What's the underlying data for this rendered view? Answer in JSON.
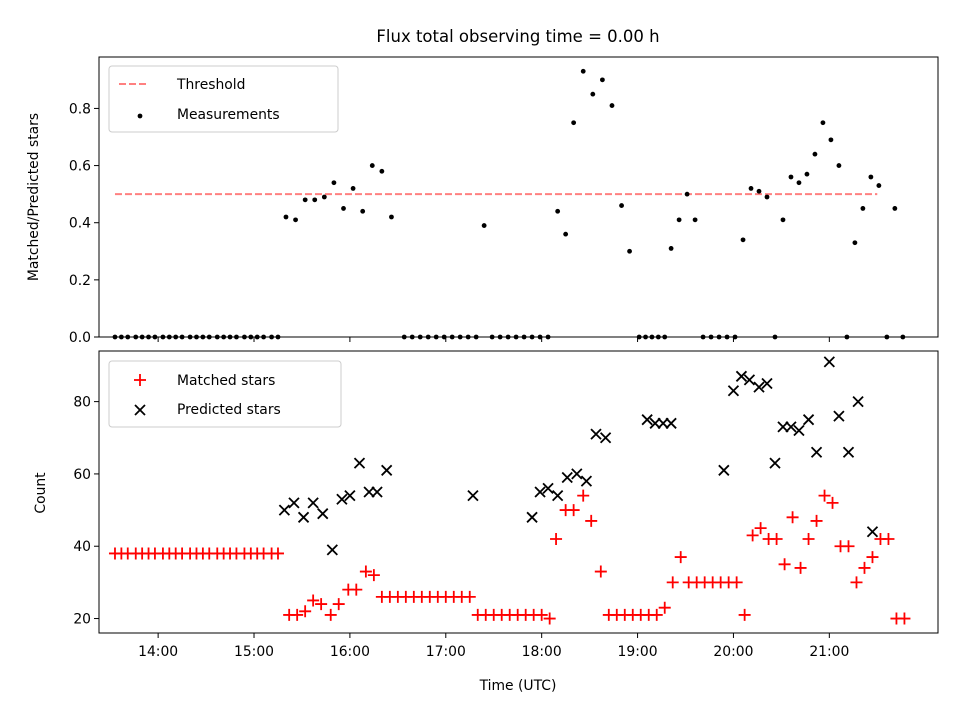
{
  "chart_data": [
    {
      "type": "scatter",
      "title": "Flux total observing time = 0.00 h",
      "xlabel": "",
      "ylabel": "Matched/Predicted stars",
      "xlim": [
        "13:23",
        "22:08"
      ],
      "ylim": [
        0,
        0.98
      ],
      "x_tick_labels": [
        "14:00",
        "15:00",
        "16:00",
        "17:00",
        "18:00",
        "19:00",
        "20:00",
        "21:00"
      ],
      "y_tick_labels": [
        "0.0",
        "0.2",
        "0.4",
        "0.6",
        "0.8"
      ],
      "y_ticks": [
        0,
        0.2,
        0.4,
        0.6,
        0.8
      ],
      "grid": false,
      "legend": "top-left",
      "threshold": {
        "name": "Threshold",
        "value": 0.5,
        "x_range": [
          "13:33",
          "21:30"
        ],
        "color": "#ff8080",
        "style": "dashed"
      },
      "series": [
        {
          "name": "Measurements",
          "color": "#000000",
          "marker": "dot",
          "points": [
            [
              "13:33",
              0
            ],
            [
              "13:37",
              0
            ],
            [
              "13:41",
              0
            ],
            [
              "13:46",
              0
            ],
            [
              "13:50",
              0
            ],
            [
              "13:54",
              0
            ],
            [
              "13:58",
              0
            ],
            [
              "14:03",
              0
            ],
            [
              "14:07",
              0
            ],
            [
              "14:11",
              0
            ],
            [
              "14:15",
              0
            ],
            [
              "14:20",
              0
            ],
            [
              "14:24",
              0
            ],
            [
              "14:28",
              0
            ],
            [
              "14:32",
              0
            ],
            [
              "14:37",
              0
            ],
            [
              "14:41",
              0
            ],
            [
              "14:45",
              0
            ],
            [
              "14:49",
              0
            ],
            [
              "14:54",
              0
            ],
            [
              "14:58",
              0
            ],
            [
              "15:02",
              0
            ],
            [
              "15:06",
              0
            ],
            [
              "15:11",
              0
            ],
            [
              "15:15",
              0
            ],
            [
              "15:20",
              0.42
            ],
            [
              "15:26",
              0.41
            ],
            [
              "15:32",
              0.48
            ],
            [
              "15:38",
              0.48
            ],
            [
              "15:44",
              0.49
            ],
            [
              "15:50",
              0.54
            ],
            [
              "15:56",
              0.45
            ],
            [
              "16:02",
              0.52
            ],
            [
              "16:08",
              0.44
            ],
            [
              "16:14",
              0.6
            ],
            [
              "16:20",
              0.58
            ],
            [
              "16:26",
              0.42
            ],
            [
              "16:34",
              0
            ],
            [
              "16:39",
              0
            ],
            [
              "16:44",
              0
            ],
            [
              "16:49",
              0
            ],
            [
              "16:54",
              0
            ],
            [
              "16:59",
              0
            ],
            [
              "17:04",
              0
            ],
            [
              "17:09",
              0
            ],
            [
              "17:14",
              0
            ],
            [
              "17:19",
              0
            ],
            [
              "17:24",
              0.39
            ],
            [
              "17:29",
              0
            ],
            [
              "17:34",
              0
            ],
            [
              "17:39",
              0
            ],
            [
              "17:44",
              0
            ],
            [
              "17:49",
              0
            ],
            [
              "17:54",
              0
            ],
            [
              "17:59",
              0
            ],
            [
              "18:04",
              0
            ],
            [
              "18:10",
              0.44
            ],
            [
              "18:15",
              0.36
            ],
            [
              "18:20",
              0.75
            ],
            [
              "18:26",
              0.93
            ],
            [
              "18:32",
              0.85
            ],
            [
              "18:38",
              0.9
            ],
            [
              "18:44",
              0.81
            ],
            [
              "18:50",
              0.46
            ],
            [
              "18:55",
              0.3
            ],
            [
              "19:01",
              0
            ],
            [
              "19:05",
              0
            ],
            [
              "19:09",
              0
            ],
            [
              "19:13",
              0
            ],
            [
              "19:17",
              0
            ],
            [
              "19:21",
              0.31
            ],
            [
              "19:26",
              0.41
            ],
            [
              "19:31",
              0.5
            ],
            [
              "19:36",
              0.41
            ],
            [
              "19:41",
              0
            ],
            [
              "19:46",
              0
            ],
            [
              "19:51",
              0
            ],
            [
              "19:56",
              0
            ],
            [
              "20:01",
              0
            ],
            [
              "20:06",
              0.34
            ],
            [
              "20:11",
              0.52
            ],
            [
              "20:16",
              0.51
            ],
            [
              "20:21",
              0.49
            ],
            [
              "20:26",
              0
            ],
            [
              "20:31",
              0.41
            ],
            [
              "20:36",
              0.56
            ],
            [
              "20:41",
              0.54
            ],
            [
              "20:46",
              0.57
            ],
            [
              "20:51",
              0.64
            ],
            [
              "20:56",
              0.75
            ],
            [
              "21:01",
              0.69
            ],
            [
              "21:06",
              0.6
            ],
            [
              "21:11",
              0
            ],
            [
              "21:16",
              0.33
            ],
            [
              "21:21",
              0.45
            ],
            [
              "21:26",
              0.56
            ],
            [
              "21:31",
              0.53
            ],
            [
              "21:36",
              0
            ],
            [
              "21:41",
              0.45
            ],
            [
              "21:46",
              0
            ]
          ]
        }
      ]
    },
    {
      "type": "scatter",
      "title": "",
      "xlabel": "Time (UTC)",
      "ylabel": "Count",
      "xlim": [
        "13:23",
        "22:08"
      ],
      "ylim": [
        16,
        94
      ],
      "x_tick_labels": [
        "14:00",
        "15:00",
        "16:00",
        "17:00",
        "18:00",
        "19:00",
        "20:00",
        "21:00"
      ],
      "y_tick_labels": [
        "20",
        "40",
        "60",
        "80"
      ],
      "y_ticks": [
        20,
        40,
        60,
        80
      ],
      "grid": false,
      "legend": "top-left",
      "series": [
        {
          "name": "Matched stars",
          "color": "#ff0000",
          "marker": "+",
          "points": [
            [
              "13:33",
              38
            ],
            [
              "13:37",
              38
            ],
            [
              "13:41",
              38
            ],
            [
              "13:46",
              38
            ],
            [
              "13:50",
              38
            ],
            [
              "13:54",
              38
            ],
            [
              "13:58",
              38
            ],
            [
              "14:03",
              38
            ],
            [
              "14:07",
              38
            ],
            [
              "14:11",
              38
            ],
            [
              "14:15",
              38
            ],
            [
              "14:20",
              38
            ],
            [
              "14:24",
              38
            ],
            [
              "14:28",
              38
            ],
            [
              "14:32",
              38
            ],
            [
              "14:37",
              38
            ],
            [
              "14:41",
              38
            ],
            [
              "14:45",
              38
            ],
            [
              "14:49",
              38
            ],
            [
              "14:54",
              38
            ],
            [
              "14:58",
              38
            ],
            [
              "15:02",
              38
            ],
            [
              "15:06",
              38
            ],
            [
              "15:11",
              38
            ],
            [
              "15:15",
              38
            ],
            [
              "15:22",
              21
            ],
            [
              "15:27",
              21
            ],
            [
              "15:32",
              22
            ],
            [
              "15:37",
              25
            ],
            [
              "15:42",
              24
            ],
            [
              "15:48",
              21
            ],
            [
              "15:53",
              24
            ],
            [
              "15:59",
              28
            ],
            [
              "16:04",
              28
            ],
            [
              "16:10",
              33
            ],
            [
              "16:15",
              32
            ],
            [
              "16:20",
              26
            ],
            [
              "16:25",
              26
            ],
            [
              "16:30",
              26
            ],
            [
              "16:35",
              26
            ],
            [
              "16:40",
              26
            ],
            [
              "16:45",
              26
            ],
            [
              "16:50",
              26
            ],
            [
              "16:55",
              26
            ],
            [
              "17:00",
              26
            ],
            [
              "17:05",
              26
            ],
            [
              "17:10",
              26
            ],
            [
              "17:15",
              26
            ],
            [
              "17:20",
              21
            ],
            [
              "17:25",
              21
            ],
            [
              "17:30",
              21
            ],
            [
              "17:35",
              21
            ],
            [
              "17:40",
              21
            ],
            [
              "17:45",
              21
            ],
            [
              "17:50",
              21
            ],
            [
              "17:55",
              21
            ],
            [
              "18:00",
              21
            ],
            [
              "18:05",
              20
            ],
            [
              "18:09",
              42
            ],
            [
              "18:15",
              50
            ],
            [
              "18:20",
              50
            ],
            [
              "18:26",
              54
            ],
            [
              "18:31",
              47
            ],
            [
              "18:37",
              33
            ],
            [
              "18:42",
              21
            ],
            [
              "18:47",
              21
            ],
            [
              "18:52",
              21
            ],
            [
              "18:57",
              21
            ],
            [
              "19:02",
              21
            ],
            [
              "19:07",
              21
            ],
            [
              "19:12",
              21
            ],
            [
              "19:17",
              23
            ],
            [
              "19:22",
              30
            ],
            [
              "19:27",
              37
            ],
            [
              "19:32",
              30
            ],
            [
              "19:37",
              30
            ],
            [
              "19:42",
              30
            ],
            [
              "19:47",
              30
            ],
            [
              "19:52",
              30
            ],
            [
              "19:57",
              30
            ],
            [
              "20:02",
              30
            ],
            [
              "20:07",
              21
            ],
            [
              "20:12",
              43
            ],
            [
              "20:17",
              45
            ],
            [
              "20:22",
              42
            ],
            [
              "20:27",
              42
            ],
            [
              "20:32",
              35
            ],
            [
              "20:37",
              48
            ],
            [
              "20:42",
              34
            ],
            [
              "20:47",
              42
            ],
            [
              "20:52",
              47
            ],
            [
              "20:57",
              54
            ],
            [
              "21:02",
              52
            ],
            [
              "21:07",
              40
            ],
            [
              "21:12",
              40
            ],
            [
              "21:17",
              30
            ],
            [
              "21:22",
              34
            ],
            [
              "21:27",
              37
            ],
            [
              "21:32",
              42
            ],
            [
              "21:37",
              42
            ],
            [
              "21:42",
              20
            ],
            [
              "21:47",
              20
            ]
          ]
        },
        {
          "name": "Predicted stars",
          "color": "#000000",
          "marker": "x",
          "points": [
            [
              "15:19",
              50
            ],
            [
              "15:25",
              52
            ],
            [
              "15:31",
              48
            ],
            [
              "15:37",
              52
            ],
            [
              "15:43",
              49
            ],
            [
              "15:49",
              39
            ],
            [
              "15:55",
              53
            ],
            [
              "16:00",
              54
            ],
            [
              "16:06",
              63
            ],
            [
              "16:12",
              55
            ],
            [
              "16:17",
              55
            ],
            [
              "16:23",
              61
            ],
            [
              "17:17",
              54
            ],
            [
              "17:54",
              48
            ],
            [
              "17:59",
              55
            ],
            [
              "18:04",
              56
            ],
            [
              "18:10",
              54
            ],
            [
              "18:16",
              59
            ],
            [
              "18:22",
              60
            ],
            [
              "18:28",
              58
            ],
            [
              "18:34",
              71
            ],
            [
              "18:40",
              70
            ],
            [
              "19:06",
              75
            ],
            [
              "19:11",
              74
            ],
            [
              "19:16",
              74
            ],
            [
              "19:21",
              74
            ],
            [
              "19:54",
              61
            ],
            [
              "20:00",
              83
            ],
            [
              "20:05",
              87
            ],
            [
              "20:10",
              86
            ],
            [
              "20:16",
              84
            ],
            [
              "20:21",
              85
            ],
            [
              "20:26",
              63
            ],
            [
              "20:31",
              73
            ],
            [
              "20:36",
              73
            ],
            [
              "20:41",
              72
            ],
            [
              "20:47",
              75
            ],
            [
              "20:52",
              66
            ],
            [
              "21:00",
              91
            ],
            [
              "21:06",
              76
            ],
            [
              "21:12",
              66
            ],
            [
              "21:18",
              80
            ],
            [
              "21:27",
              44
            ]
          ]
        }
      ]
    }
  ]
}
